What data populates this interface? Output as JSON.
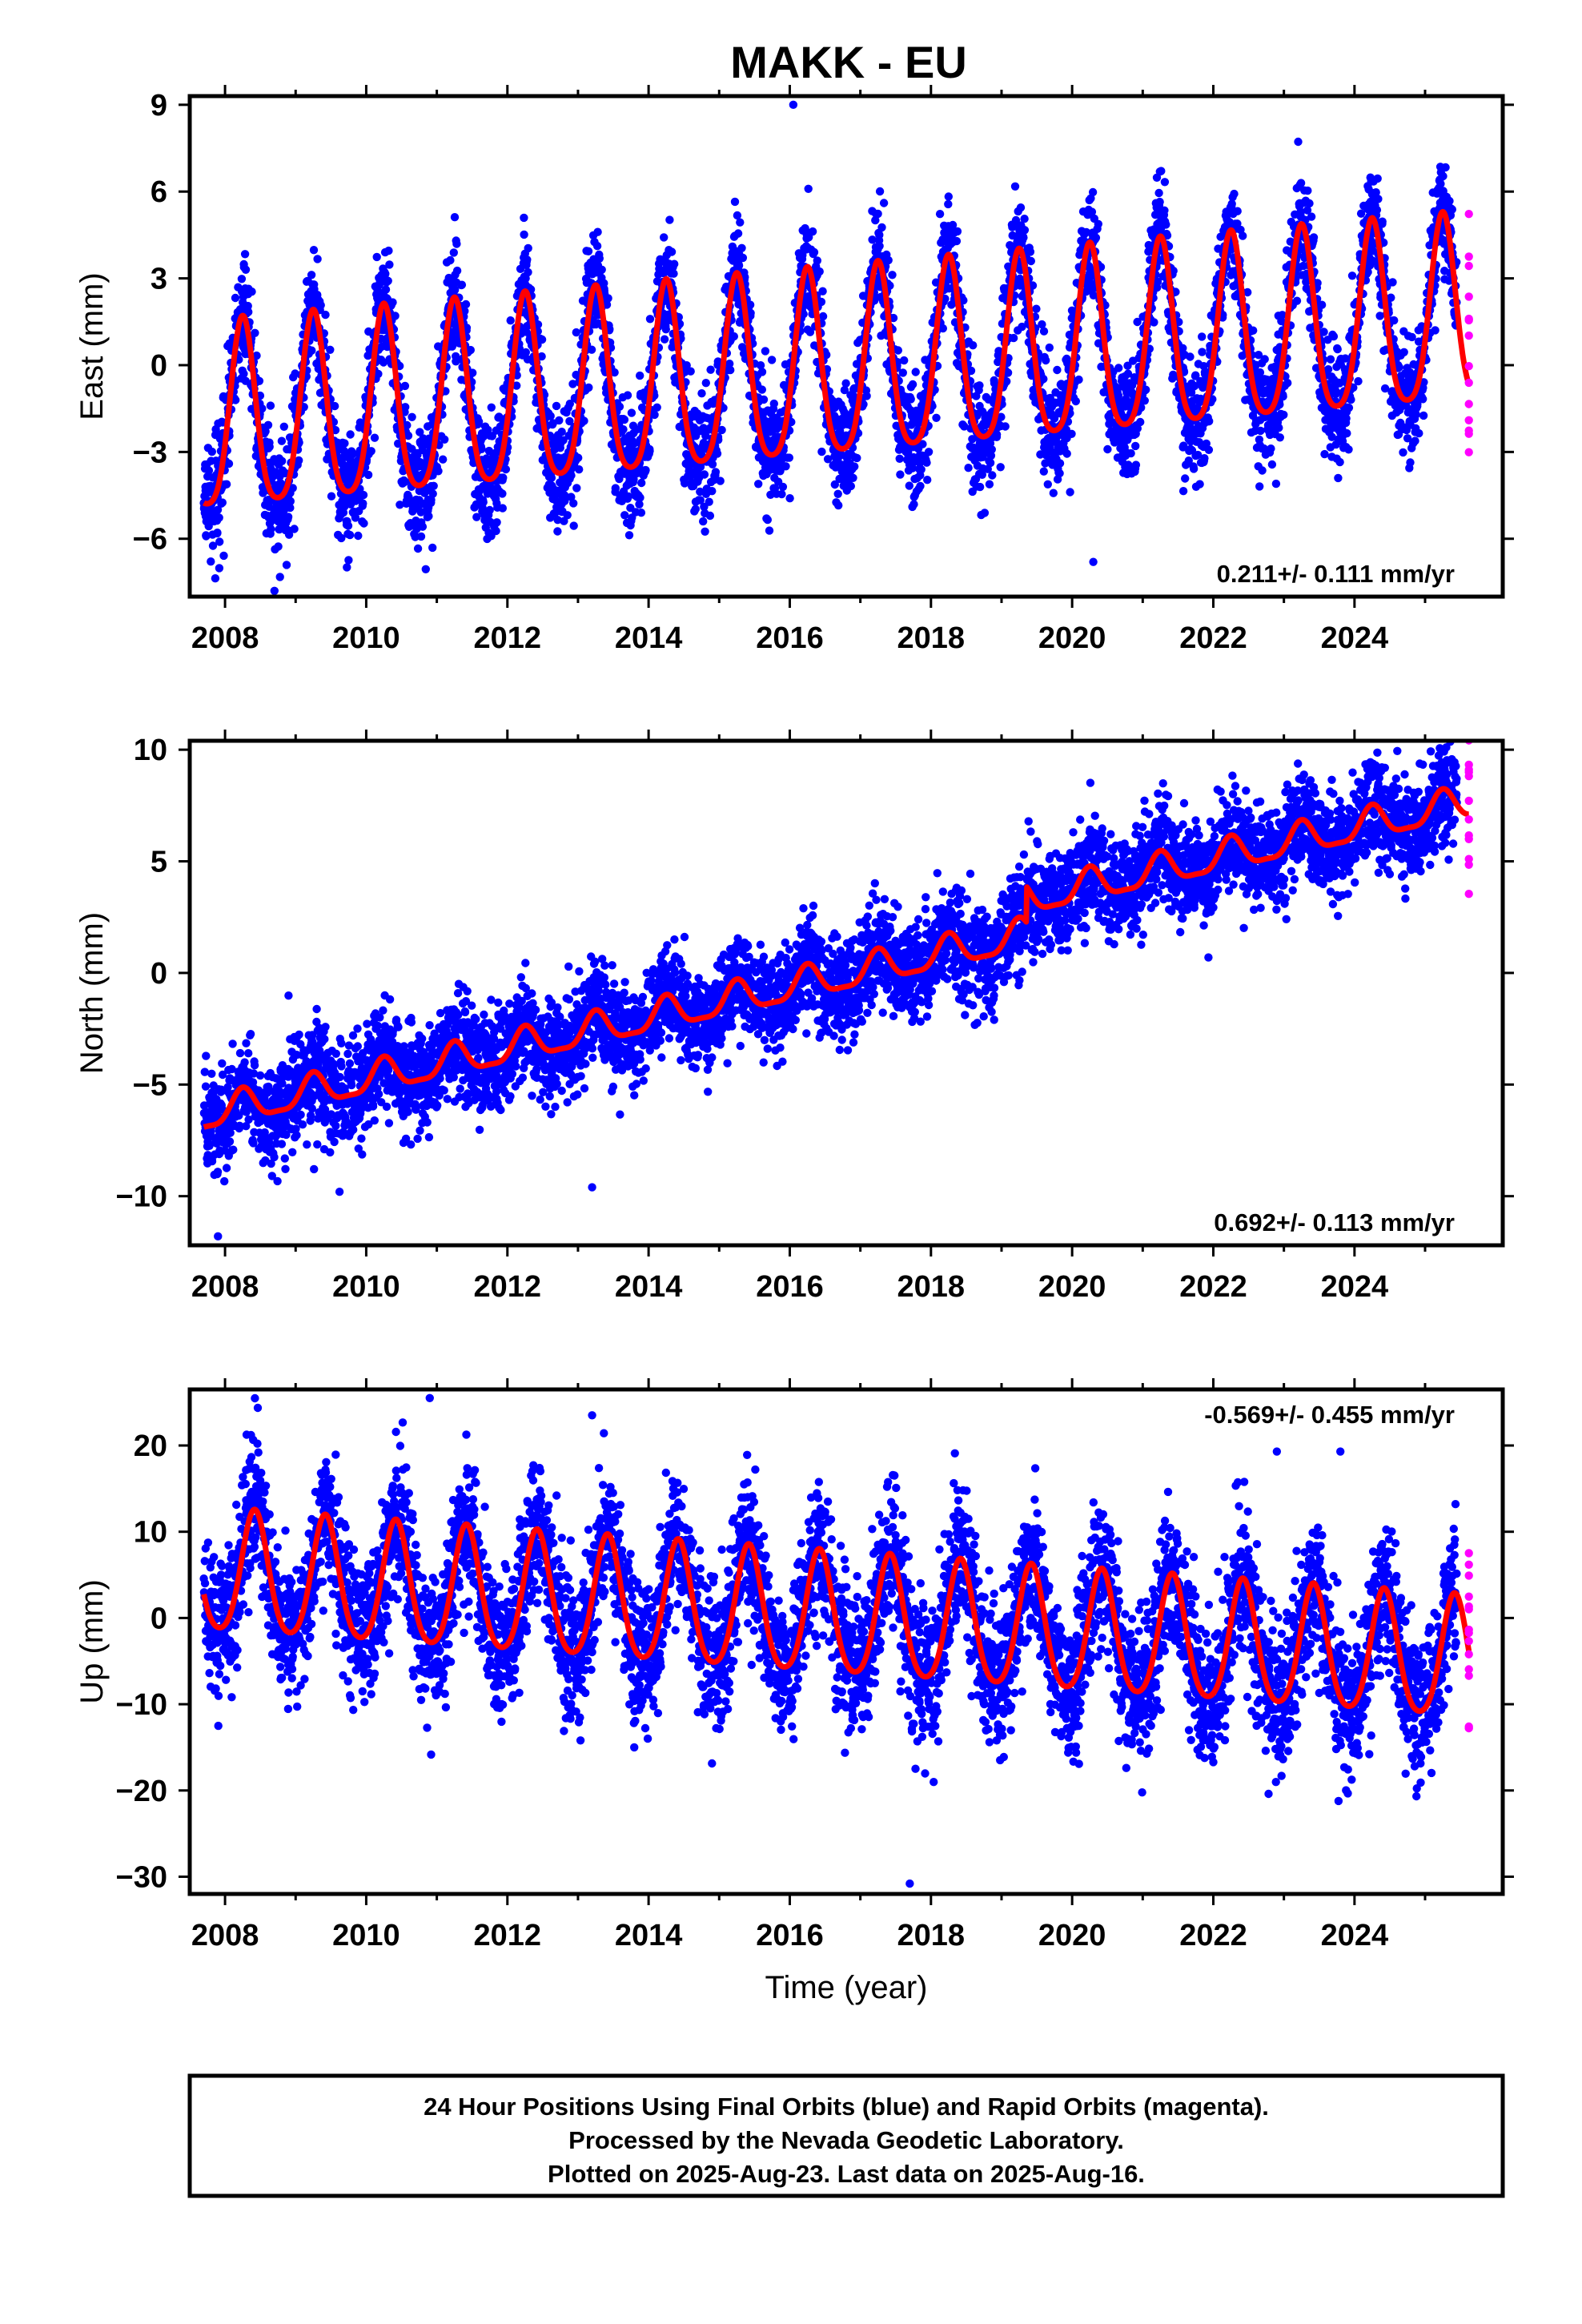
{
  "title": "MAKK - EU",
  "colors": {
    "final": "#0000ff",
    "rapid": "#ff00ff",
    "model": "#ff0000",
    "axis": "#000000"
  },
  "caption": {
    "line1": "24 Hour Positions Using Final Orbits (blue) and Rapid Orbits (magenta).",
    "line2": "Processed by the Nevada Geodetic Laboratory.",
    "line3": "Plotted on 2025-Aug-23. Last data on 2025-Aug-16."
  },
  "chart_data": [
    {
      "type": "scatter",
      "component": "east",
      "ylabel": "East (mm)",
      "xlabel": "",
      "xlim": [
        2007.5,
        2026.1
      ],
      "ylim": [
        -8,
        9.3
      ],
      "xticks": [
        2008,
        2010,
        2012,
        2014,
        2016,
        2018,
        2020,
        2022,
        2024
      ],
      "xtick_labels": [
        "2008",
        "2010",
        "2012",
        "2014",
        "2016",
        "2018",
        "2020",
        "2022",
        "2024"
      ],
      "yticks": [
        -6,
        -3,
        0,
        3,
        6,
        9
      ],
      "ytick_labels": [
        "−6",
        "−3",
        "0",
        "3",
        "6",
        "9"
      ],
      "rate_label": "0.211+/- 0.111 mm/yr",
      "rate_position": "bottom-right",
      "data_start": 2007.7,
      "data_end": 2025.45,
      "rapid_end": 2025.62,
      "model": {
        "offset": -2.2,
        "slope": 0.211,
        "t0": 2007.7,
        "annual_amp": 3.2,
        "annual_phase": 0.25,
        "semiannual_amp": 0.6,
        "noise_sd": 1.0
      },
      "outliers": [
        [
          2016.05,
          9.0
        ],
        [
          2008.7,
          -7.8
        ],
        [
          2020.3,
          -6.8
        ]
      ],
      "series": [
        {
          "name": "Final Orbits (blue)",
          "marker": "point"
        },
        {
          "name": "Rapid Orbits (magenta)",
          "marker": "point"
        }
      ]
    },
    {
      "type": "scatter",
      "component": "north",
      "ylabel": "North (mm)",
      "xlabel": "",
      "xlim": [
        2007.5,
        2026.1
      ],
      "ylim": [
        -12.2,
        10.4
      ],
      "xticks": [
        2008,
        2010,
        2012,
        2014,
        2016,
        2018,
        2020,
        2022,
        2024
      ],
      "xtick_labels": [
        "2008",
        "2010",
        "2012",
        "2014",
        "2016",
        "2018",
        "2020",
        "2022",
        "2024"
      ],
      "yticks": [
        -10,
        -5,
        0,
        5,
        10
      ],
      "ytick_labels": [
        "−10",
        "−5",
        "0",
        "5",
        "10"
      ],
      "rate_label": "0.692+/- 0.113 mm/yr",
      "rate_position": "bottom-right",
      "data_start": 2007.7,
      "data_end": 2025.45,
      "rapid_end": 2025.62,
      "model": {
        "offset": -6.4,
        "slope": 0.692,
        "t0": 2007.7,
        "annual_amp": 0.7,
        "annual_phase": 0.25,
        "semiannual_amp": 0.2,
        "noise_sd": 1.1,
        "steps": [
          [
            2019.35,
            1.6
          ]
        ]
      },
      "outliers": [
        [
          2007.9,
          -11.8
        ],
        [
          2025.3,
          10.1
        ],
        [
          2013.2,
          -9.6
        ]
      ],
      "series": [
        {
          "name": "Final Orbits (blue)",
          "marker": "point"
        },
        {
          "name": "Rapid Orbits (magenta)",
          "marker": "point"
        }
      ]
    },
    {
      "type": "scatter",
      "component": "up",
      "ylabel": "Up (mm)",
      "xlabel": "Time (year)",
      "xlim": [
        2007.5,
        2026.1
      ],
      "ylim": [
        -32,
        26.5
      ],
      "xticks": [
        2008,
        2010,
        2012,
        2014,
        2016,
        2018,
        2020,
        2022,
        2024
      ],
      "xtick_labels": [
        "2008",
        "2010",
        "2012",
        "2014",
        "2016",
        "2018",
        "2020",
        "2022",
        "2024"
      ],
      "yticks": [
        -30,
        -20,
        -10,
        0,
        10,
        20
      ],
      "ytick_labels": [
        "−30",
        "−20",
        "−10",
        "0",
        "10",
        "20"
      ],
      "rate_label": "-0.569+/- 0.455 mm/yr",
      "rate_position": "top-right",
      "data_start": 2007.7,
      "data_end": 2025.45,
      "rapid_end": 2025.62,
      "model": {
        "offset": 5.0,
        "slope": -0.569,
        "t0": 2007.7,
        "annual_amp": 7.0,
        "annual_phase": 0.42,
        "semiannual_amp": 1.0,
        "noise_sd": 4.2
      },
      "outliers": [
        [
          2010.9,
          25.5
        ],
        [
          2017.7,
          -30.8
        ],
        [
          2013.2,
          23.5
        ],
        [
          2022.9,
          19.3
        ],
        [
          2023.8,
          19.3
        ]
      ],
      "series": [
        {
          "name": "Final Orbits (blue)",
          "marker": "point"
        },
        {
          "name": "Rapid Orbits (magenta)",
          "marker": "point"
        }
      ]
    }
  ]
}
